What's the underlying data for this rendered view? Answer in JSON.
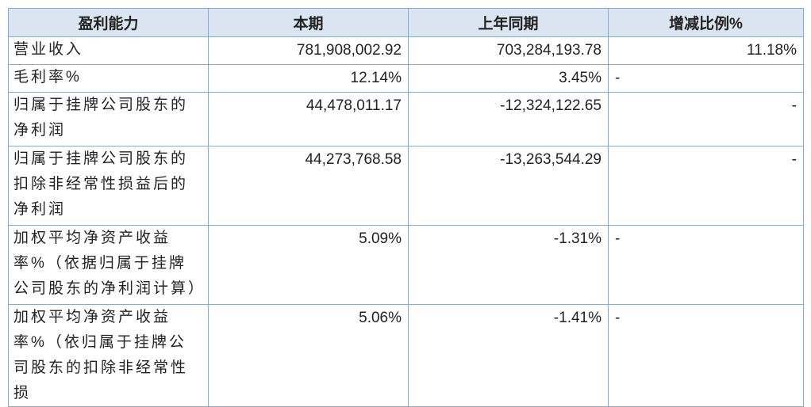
{
  "table": {
    "header": [
      "盈利能力",
      "本期",
      "上年同期",
      "增减比例%"
    ],
    "rows": [
      [
        "营业收入",
        "781,908,002.92",
        "703,284,193.78",
        "11.18%"
      ],
      [
        "毛利率%",
        "12.14%",
        "3.45%",
        "-"
      ],
      [
        "归属于挂牌公司股东的净利润",
        "44,478,011.17",
        "-12,324,122.65",
        "-"
      ],
      [
        "归属于挂牌公司股东的扣除非经常性损益后的净利润",
        "44,273,768.58",
        "-13,263,544.29",
        "-"
      ],
      [
        "加权平均净资产收益率%（依据归属于挂牌公司股东的净利润计算）",
        "5.09%",
        "-1.31%",
        "-"
      ],
      [
        "加权平均净资产收益率%（依归属于挂牌公司股东的扣除非经常性损",
        "5.06%",
        "-1.41%",
        "-"
      ]
    ]
  }
}
